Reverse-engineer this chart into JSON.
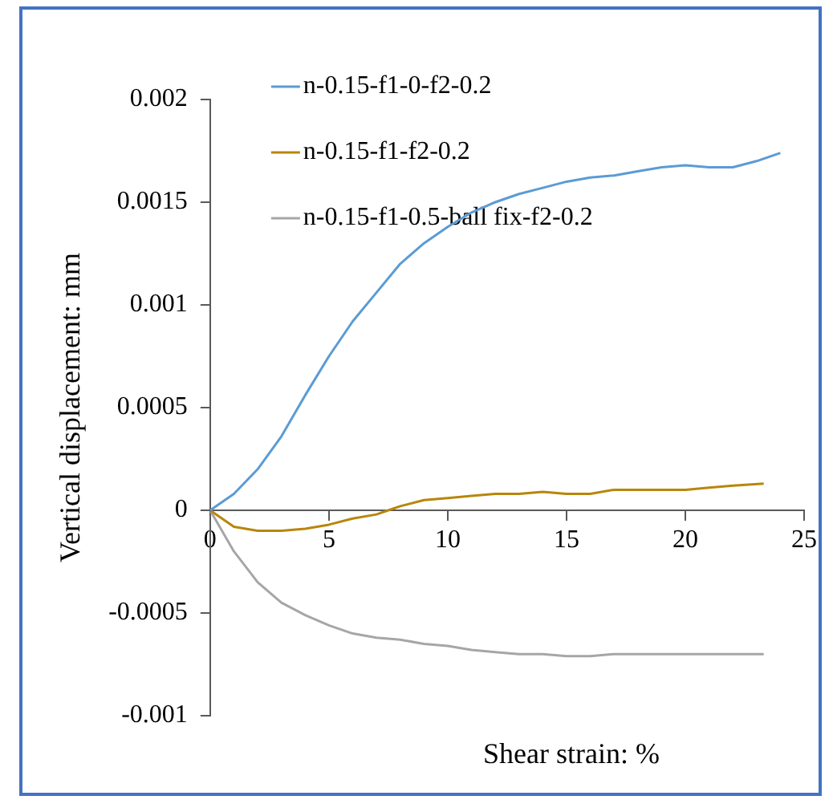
{
  "chart_data": {
    "type": "line",
    "xlabel": "Shear strain: %",
    "ylabel": "Vertical displacement: mm",
    "xlim": [
      0,
      25
    ],
    "xticks": [
      0,
      5,
      10,
      15,
      20,
      25
    ],
    "ylim": [
      -0.001,
      0.002
    ],
    "yticks": [
      -0.001,
      -0.0005,
      0,
      0.0005,
      0.001,
      0.0015,
      0.002
    ],
    "grid": false,
    "legend": "top left",
    "marker": "none",
    "line_style": "solid",
    "series": [
      {
        "name": "n-0.15-f1-0-f2-0.2",
        "color": "#5b9bd5",
        "x": [
          0,
          1,
          2,
          3,
          4,
          5,
          6,
          7,
          8,
          9,
          10,
          11,
          12,
          13,
          14,
          15,
          16,
          17,
          18,
          19,
          20,
          21,
          22,
          23,
          24
        ],
        "values": [
          0,
          8e-05,
          0.0002,
          0.00036,
          0.00056,
          0.00075,
          0.00092,
          0.00106,
          0.0012,
          0.0013,
          0.00138,
          0.00145,
          0.0015,
          0.00154,
          0.00157,
          0.0016,
          0.00162,
          0.00163,
          0.00165,
          0.00167,
          0.00168,
          0.00167,
          0.00167,
          0.0017,
          0.00174
        ]
      },
      {
        "name": "n-0.15-f1-f2-0.2",
        "color": "#b8860b",
        "x": [
          0,
          1,
          2,
          3,
          4,
          5,
          6,
          7,
          7.5,
          8,
          9,
          10,
          11,
          12,
          13,
          14,
          15,
          16,
          17,
          18,
          19,
          20,
          21,
          22,
          23.3
        ],
        "values": [
          0,
          -8e-05,
          -0.0001,
          -0.0001,
          -9e-05,
          -7e-05,
          -4e-05,
          -2e-05,
          0,
          2e-05,
          5e-05,
          6e-05,
          7e-05,
          8e-05,
          8e-05,
          9e-05,
          8e-05,
          8e-05,
          0.0001,
          0.0001,
          0.0001,
          0.0001,
          0.00011,
          0.00012,
          0.00013
        ]
      },
      {
        "name": "n-0.15-f1-0.5-ball fix-f2-0.2",
        "color": "#a6a6a6",
        "x": [
          0,
          1,
          2,
          3,
          4,
          5,
          6,
          7,
          8,
          9,
          10,
          11,
          12,
          13,
          14,
          15,
          16,
          17,
          18,
          19,
          20,
          21,
          22,
          23.3
        ],
        "values": [
          0,
          -0.0002,
          -0.00035,
          -0.00045,
          -0.00051,
          -0.00056,
          -0.0006,
          -0.00062,
          -0.00063,
          -0.00065,
          -0.00066,
          -0.00068,
          -0.00069,
          -0.0007,
          -0.0007,
          -0.00071,
          -0.00071,
          -0.0007,
          -0.0007,
          -0.0007,
          -0.0007,
          -0.0007,
          -0.0007,
          -0.0007
        ]
      }
    ]
  }
}
